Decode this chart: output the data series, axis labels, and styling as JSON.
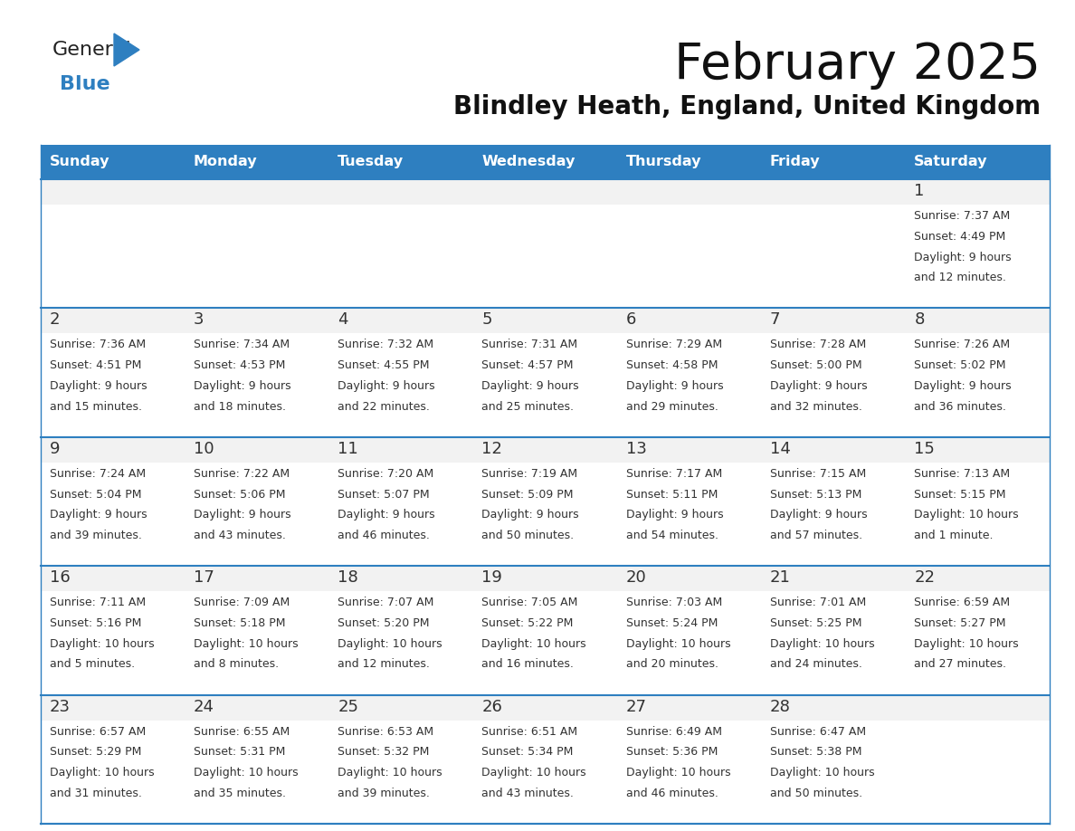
{
  "title": "February 2025",
  "subtitle": "Blindley Heath, England, United Kingdom",
  "header_color": "#2E7FC0",
  "header_text_color": "#FFFFFF",
  "cell_white": "#FFFFFF",
  "cell_gray": "#F2F2F2",
  "cell_border_color": "#2E7FC0",
  "day_number_color": "#333333",
  "info_text_color": "#333333",
  "days_of_week": [
    "Sunday",
    "Monday",
    "Tuesday",
    "Wednesday",
    "Thursday",
    "Friday",
    "Saturday"
  ],
  "calendar": [
    [
      null,
      null,
      null,
      null,
      null,
      null,
      {
        "day": 1,
        "sunrise": "7:37 AM",
        "sunset": "4:49 PM",
        "daylight": "9 hours and 12 minutes."
      }
    ],
    [
      {
        "day": 2,
        "sunrise": "7:36 AM",
        "sunset": "4:51 PM",
        "daylight": "9 hours and 15 minutes."
      },
      {
        "day": 3,
        "sunrise": "7:34 AM",
        "sunset": "4:53 PM",
        "daylight": "9 hours and 18 minutes."
      },
      {
        "day": 4,
        "sunrise": "7:32 AM",
        "sunset": "4:55 PM",
        "daylight": "9 hours and 22 minutes."
      },
      {
        "day": 5,
        "sunrise": "7:31 AM",
        "sunset": "4:57 PM",
        "daylight": "9 hours and 25 minutes."
      },
      {
        "day": 6,
        "sunrise": "7:29 AM",
        "sunset": "4:58 PM",
        "daylight": "9 hours and 29 minutes."
      },
      {
        "day": 7,
        "sunrise": "7:28 AM",
        "sunset": "5:00 PM",
        "daylight": "9 hours and 32 minutes."
      },
      {
        "day": 8,
        "sunrise": "7:26 AM",
        "sunset": "5:02 PM",
        "daylight": "9 hours and 36 minutes."
      }
    ],
    [
      {
        "day": 9,
        "sunrise": "7:24 AM",
        "sunset": "5:04 PM",
        "daylight": "9 hours and 39 minutes."
      },
      {
        "day": 10,
        "sunrise": "7:22 AM",
        "sunset": "5:06 PM",
        "daylight": "9 hours and 43 minutes."
      },
      {
        "day": 11,
        "sunrise": "7:20 AM",
        "sunset": "5:07 PM",
        "daylight": "9 hours and 46 minutes."
      },
      {
        "day": 12,
        "sunrise": "7:19 AM",
        "sunset": "5:09 PM",
        "daylight": "9 hours and 50 minutes."
      },
      {
        "day": 13,
        "sunrise": "7:17 AM",
        "sunset": "5:11 PM",
        "daylight": "9 hours and 54 minutes."
      },
      {
        "day": 14,
        "sunrise": "7:15 AM",
        "sunset": "5:13 PM",
        "daylight": "9 hours and 57 minutes."
      },
      {
        "day": 15,
        "sunrise": "7:13 AM",
        "sunset": "5:15 PM",
        "daylight": "10 hours and 1 minute."
      }
    ],
    [
      {
        "day": 16,
        "sunrise": "7:11 AM",
        "sunset": "5:16 PM",
        "daylight": "10 hours and 5 minutes."
      },
      {
        "day": 17,
        "sunrise": "7:09 AM",
        "sunset": "5:18 PM",
        "daylight": "10 hours and 8 minutes."
      },
      {
        "day": 18,
        "sunrise": "7:07 AM",
        "sunset": "5:20 PM",
        "daylight": "10 hours and 12 minutes."
      },
      {
        "day": 19,
        "sunrise": "7:05 AM",
        "sunset": "5:22 PM",
        "daylight": "10 hours and 16 minutes."
      },
      {
        "day": 20,
        "sunrise": "7:03 AM",
        "sunset": "5:24 PM",
        "daylight": "10 hours and 20 minutes."
      },
      {
        "day": 21,
        "sunrise": "7:01 AM",
        "sunset": "5:25 PM",
        "daylight": "10 hours and 24 minutes."
      },
      {
        "day": 22,
        "sunrise": "6:59 AM",
        "sunset": "5:27 PM",
        "daylight": "10 hours and 27 minutes."
      }
    ],
    [
      {
        "day": 23,
        "sunrise": "6:57 AM",
        "sunset": "5:29 PM",
        "daylight": "10 hours and 31 minutes."
      },
      {
        "day": 24,
        "sunrise": "6:55 AM",
        "sunset": "5:31 PM",
        "daylight": "10 hours and 35 minutes."
      },
      {
        "day": 25,
        "sunrise": "6:53 AM",
        "sunset": "5:32 PM",
        "daylight": "10 hours and 39 minutes."
      },
      {
        "day": 26,
        "sunrise": "6:51 AM",
        "sunset": "5:34 PM",
        "daylight": "10 hours and 43 minutes."
      },
      {
        "day": 27,
        "sunrise": "6:49 AM",
        "sunset": "5:36 PM",
        "daylight": "10 hours and 46 minutes."
      },
      {
        "day": 28,
        "sunrise": "6:47 AM",
        "sunset": "5:38 PM",
        "daylight": "10 hours and 50 minutes."
      },
      null
    ]
  ]
}
